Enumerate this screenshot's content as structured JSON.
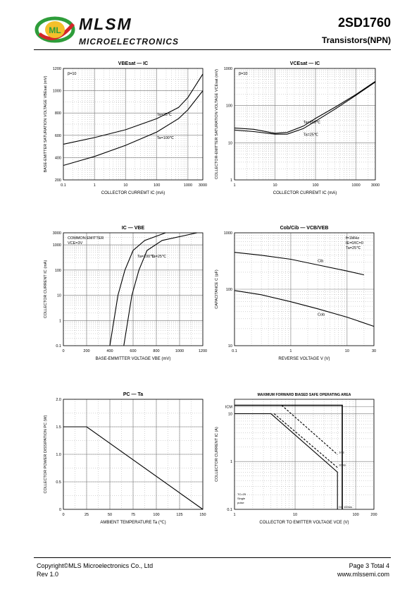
{
  "header": {
    "brand": "MLSM",
    "brand_sub": "MICROELECTRONICS",
    "logo_text": "ML",
    "part_number": "2SD1760",
    "part_type": "Transistors(NPN)"
  },
  "footer": {
    "copyright": "Copyright©MLS Microelectronics Co., Ltd",
    "revision": "Rev 1.0",
    "page": "Page 3 Total 4",
    "website": "www.mlssemi.com"
  },
  "chart_data": [
    {
      "id": "vbe-sat",
      "type": "line",
      "title": "VBEsat — IC",
      "xlabel": "COLLECTOR CURREMT  IC  (mA)",
      "ylabel": "BASE-EMITTER SATURATION VOLTAGE  VBEsat  (mV)",
      "xscale": "log",
      "xlim": [
        0.1,
        3000
      ],
      "ylim": [
        200,
        1200
      ],
      "xticks": [
        "0.1",
        "1",
        "10",
        "100",
        "1000",
        "3000"
      ],
      "yticks": [
        "200",
        "400",
        "600",
        "800",
        "1000",
        "1200"
      ],
      "annotation": "β=10",
      "series": [
        {
          "name": "Ta=25℃",
          "x": [
            0.1,
            1,
            10,
            100,
            500,
            1000,
            3000
          ],
          "y": [
            520,
            580,
            650,
            750,
            850,
            940,
            1150
          ]
        },
        {
          "name": "Ta=100℃",
          "x": [
            0.1,
            1,
            10,
            100,
            500,
            1000,
            3000
          ],
          "y": [
            330,
            410,
            510,
            630,
            750,
            830,
            1000
          ]
        }
      ]
    },
    {
      "id": "vce-sat",
      "type": "line",
      "title": "VCEsat — IC",
      "xlabel": "COLLECTOR CURREMT  IC  (mA)",
      "ylabel": "COLLECTOR-EMITTER SATURATION VOLTAGE  VCEsat  (mV)",
      "xscale": "log",
      "yscale": "log",
      "xlim": [
        1,
        3000
      ],
      "ylim": [
        1,
        1000
      ],
      "xticks": [
        "1",
        "10",
        "100",
        "1000",
        "3000"
      ],
      "yticks": [
        "1",
        "10",
        "100",
        "1000"
      ],
      "annotation": "β=10",
      "series": [
        {
          "name": "Ta=100℃",
          "x": [
            1,
            3,
            10,
            20,
            50,
            100,
            300,
            1000,
            3000
          ],
          "y": [
            25,
            23,
            18,
            19,
            28,
            45,
            90,
            200,
            450
          ]
        },
        {
          "name": "Ta=25℃",
          "x": [
            1,
            3,
            10,
            20,
            50,
            100,
            300,
            1000,
            3000
          ],
          "y": [
            22,
            20,
            17,
            17,
            24,
            38,
            80,
            190,
            430
          ]
        }
      ]
    },
    {
      "id": "ic-vbe",
      "type": "line",
      "title": "IC — VBE",
      "xlabel": "BASE-EMMITTER VOLTAGE  VBE  (mV)",
      "ylabel": "COLLECTOR CURRENT  IC  (mA)",
      "yscale": "log",
      "xlim": [
        0,
        1200
      ],
      "ylim": [
        0.1,
        3000
      ],
      "xticks": [
        "0",
        "200",
        "400",
        "600",
        "800",
        "1000",
        "1200"
      ],
      "yticks": [
        "0.1",
        "1",
        "10",
        "100",
        "1000",
        "3000"
      ],
      "annotation": "COMMON EMITTER",
      "annotation2": "VCE=3V",
      "series": [
        {
          "name": "Ta=100℃",
          "x": [
            400,
            470,
            530,
            600,
            700,
            880
          ],
          "y": [
            0.1,
            10,
            100,
            600,
            1500,
            3000
          ]
        },
        {
          "name": "Ta=25℃",
          "x": [
            520,
            590,
            650,
            720,
            850,
            1150
          ],
          "y": [
            0.1,
            10,
            100,
            600,
            1500,
            3000
          ]
        }
      ]
    },
    {
      "id": "cap",
      "type": "line",
      "title": "Cob/Cib — VCB/VEB",
      "xlabel": "REVERSE VOLTAGE  V  (V)",
      "ylabel": "CAPACITANCE  C  (pF)",
      "xscale": "log",
      "yscale": "log",
      "xlim": [
        0.1,
        30
      ],
      "ylim": [
        10,
        1000
      ],
      "xticks": [
        "0.1",
        "1",
        "10",
        "30"
      ],
      "yticks": [
        "10",
        "100",
        "1000"
      ],
      "annotation": "f=1MHz",
      "annotation2": "IE=0/IC=0",
      "annotation3": "Ta=25℃",
      "series": [
        {
          "name": "Cib",
          "x": [
            0.1,
            0.3,
            1,
            3,
            10,
            20
          ],
          "y": [
            450,
            400,
            340,
            270,
            210,
            180
          ]
        },
        {
          "name": "Cob",
          "x": [
            0.1,
            0.3,
            1,
            3,
            10,
            30
          ],
          "y": [
            95,
            80,
            60,
            45,
            32,
            22
          ]
        }
      ]
    },
    {
      "id": "pc-ta",
      "type": "line",
      "title": "PC — Ta",
      "xlabel": "AMBIENT TEMPERATURE  Ta  (℃)",
      "ylabel": "COLLECTOR POWER DISSIPATION  PC  (W)",
      "xlim": [
        0,
        150
      ],
      "ylim": [
        0,
        2.0
      ],
      "xticks": [
        "0",
        "25",
        "50",
        "75",
        "100",
        "125",
        "150"
      ],
      "yticks": [
        "0",
        "0.5",
        "1.0",
        "1.5",
        "2.0"
      ],
      "series": [
        {
          "name": "PC",
          "x": [
            0,
            25,
            150
          ],
          "y": [
            1.5,
            1.5,
            0
          ]
        }
      ]
    },
    {
      "id": "soa",
      "type": "line",
      "title": "MAXIMUM FORWARD BIASED SAFE OPERATING AREA",
      "xlabel": "COLLECTOR TO EMITTER VOLTAGE  VCE  (V)",
      "ylabel": "COLLECTOR CURRENT  IC  (A)",
      "xscale": "log",
      "yscale": "log",
      "xlim": [
        1,
        200
      ],
      "ylim": [
        0.1,
        20
      ],
      "xticks": [
        "1",
        "10",
        "100",
        "200"
      ],
      "yticks": [
        "0.1",
        "1",
        "10",
        "ICM"
      ],
      "annotation": "TC=25",
      "annotation2": "Single",
      "annotation3": "pulse",
      "labels": [
        "100ms",
        "1ms",
        "10ms",
        "DC"
      ],
      "series": [
        {
          "name": "DC",
          "x": [
            1,
            4,
            50,
            50
          ],
          "y": [
            10,
            10,
            0.6,
            0.1
          ]
        },
        {
          "name": "10ms",
          "x": [
            4.5,
            50
          ],
          "y": [
            10,
            0.75
          ]
        },
        {
          "name": "1ms",
          "x": [
            6,
            50
          ],
          "y": [
            15,
            1.4
          ]
        },
        {
          "name": "100ms",
          "x": [
            1,
            60,
            60
          ],
          "y": [
            15,
            15,
            0.1
          ]
        }
      ]
    }
  ]
}
